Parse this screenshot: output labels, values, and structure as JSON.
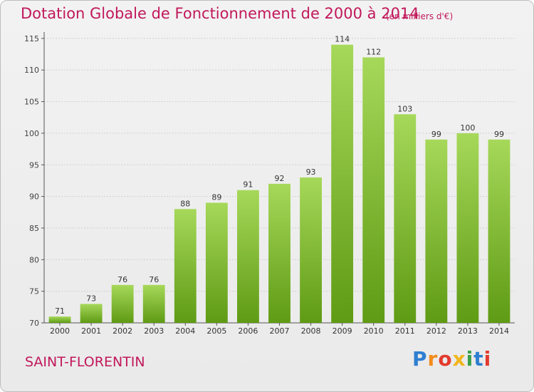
{
  "header": {
    "title": "Dotation Globale de Fonctionnement de 2000 à 2014",
    "unit": "(en milliers d'€)"
  },
  "footer": {
    "commune": "SAINT-FLORENTIN",
    "brand": "Proxiti"
  },
  "colors": {
    "title": "#c1185b",
    "bar_top": "#a6d85a",
    "bar_bottom": "#5f9b14",
    "grid": "#d0d0d0"
  },
  "chart_data": {
    "type": "bar",
    "title": "Dotation Globale de Fonctionnement de 2000 à 2014",
    "subtitle": "(en milliers d'€)",
    "categories": [
      "2000",
      "2001",
      "2002",
      "2003",
      "2004",
      "2005",
      "2006",
      "2007",
      "2008",
      "2009",
      "2010",
      "2011",
      "2012",
      "2013",
      "2014"
    ],
    "values": [
      71,
      73,
      76,
      76,
      88,
      89,
      91,
      92,
      93,
      114,
      112,
      103,
      99,
      100,
      99
    ],
    "ylim": [
      70,
      116
    ],
    "yticks": [
      70,
      75,
      80,
      85,
      90,
      95,
      100,
      105,
      110,
      115
    ],
    "grid": true,
    "legend": "none"
  }
}
